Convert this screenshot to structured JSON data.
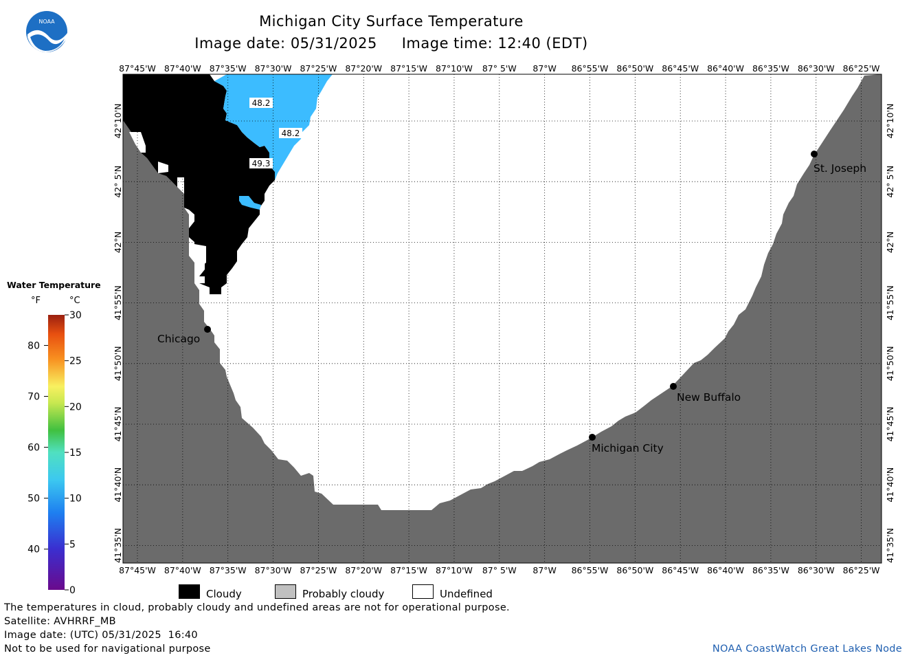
{
  "header": {
    "title": "Michigan City Surface Temperature",
    "image_date_line": "Image date: 05/31/2025     Image time: 12:40 (EDT)",
    "logo_text": "NOAA"
  },
  "map": {
    "lon_labels": [
      "87°45'W",
      "87°40'W",
      "87°35'W",
      "87°30'W",
      "87°25'W",
      "87°20'W",
      "87°15'W",
      "87°10'W",
      "87° 5'W",
      "87°W",
      "86°55'W",
      "86°50'W",
      "86°45'W",
      "86°40'W",
      "86°35'W",
      "86°30'W",
      "86°25'W"
    ],
    "lat_labels": [
      "42°10'N",
      "42° 5'N",
      "42°N",
      "41°55'N",
      "41°50'N",
      "41°45'N",
      "41°40'N",
      "41°35'N"
    ],
    "cities": [
      {
        "name": "Chicago"
      },
      {
        "name": "St. Joseph"
      },
      {
        "name": "New Buffalo"
      },
      {
        "name": "Michigan City"
      }
    ],
    "temp_labels": [
      "48.2",
      "48.2",
      "49.3"
    ],
    "colors": {
      "land": "#6b6b6b",
      "cloud": "#000000",
      "water_temp": "#3cbcff",
      "undefined": "#ffffff"
    }
  },
  "legend": {
    "title": "Water Temperature",
    "unit_f": "°F",
    "unit_c": "°C",
    "f_ticks": [
      "40",
      "50",
      "60",
      "70",
      "80"
    ],
    "c_ticks": [
      "0",
      "5",
      "10",
      "15",
      "20",
      "25",
      "30"
    ],
    "categories": [
      {
        "label": "Cloudy",
        "color": "#000000"
      },
      {
        "label": "Probably cloudy",
        "color": "#c0c0c0"
      },
      {
        "label": "Undefined",
        "color": "#ffffff"
      }
    ]
  },
  "footer": {
    "disclaimer": "The temperatures in cloud, probably cloudy and undefined areas are not for operational purpose.",
    "satellite": "Satellite: AVHRRF_MB",
    "utc_date": "Image date: (UTC) 05/31/2025  16:40",
    "nav_note": "Not to be used for navigational purpose",
    "credit": "NOAA CoastWatch Great Lakes Node"
  }
}
